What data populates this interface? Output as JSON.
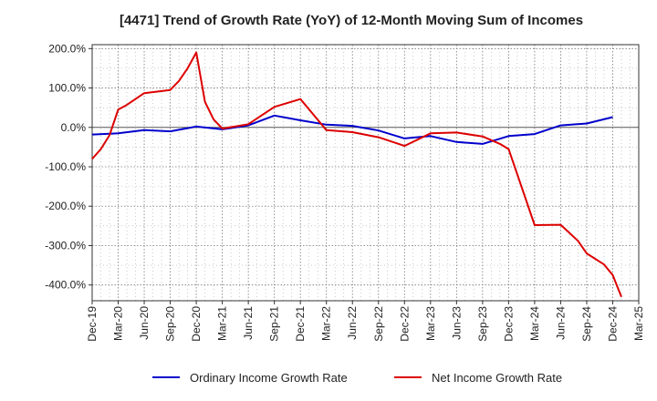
{
  "chart_data": {
    "type": "line",
    "title": "[4471]  Trend of Growth Rate (YoY) of 12-Month Moving Sum of Incomes",
    "xlabel": "",
    "ylabel": "",
    "ylim": [
      -440,
      210
    ],
    "y_ticks": [
      200,
      100,
      0,
      -100,
      -200,
      -300,
      -400
    ],
    "y_tick_labels": [
      "200.0%",
      "100.0%",
      "0.0%",
      "-100.0%",
      "-200.0%",
      "-300.0%",
      "-400.0%"
    ],
    "x_ticks": [
      "Dec-19",
      "Mar-20",
      "Jun-20",
      "Sep-20",
      "Dec-20",
      "Mar-21",
      "Jun-21",
      "Sep-21",
      "Dec-21",
      "Mar-22",
      "Jun-22",
      "Sep-22",
      "Dec-22",
      "Mar-23",
      "Jun-23",
      "Sep-23",
      "Dec-23",
      "Mar-24",
      "Jun-24",
      "Sep-24",
      "Dec-24",
      "Mar-25"
    ],
    "x_months_per_tick": 3,
    "grid": true,
    "legend_position": "bottom",
    "series": [
      {
        "name": "Ordinary Income Growth Rate",
        "color": "#0000cc",
        "points": [
          [
            "Dec-19",
            -18
          ],
          [
            "Mar-20",
            -15
          ],
          [
            "Jun-20",
            -7
          ],
          [
            "Sep-20",
            -10
          ],
          [
            "Dec-20",
            2
          ],
          [
            "Mar-21",
            -5
          ],
          [
            "Jun-21",
            5
          ],
          [
            "Sep-21",
            30
          ],
          [
            "Dec-21",
            18
          ],
          [
            "Mar-22",
            7
          ],
          [
            "Jun-22",
            4
          ],
          [
            "Sep-22",
            -8
          ],
          [
            "Dec-22",
            -28
          ],
          [
            "Mar-23",
            -22
          ],
          [
            "Jun-23",
            -37
          ],
          [
            "Sep-23",
            -42
          ],
          [
            "Dec-23",
            -22
          ],
          [
            "Mar-24",
            -17
          ],
          [
            "Jun-24",
            5
          ],
          [
            "Sep-24",
            10
          ],
          [
            "Dec-24",
            26
          ]
        ]
      },
      {
        "name": "Net Income Growth Rate",
        "color": "#dd0000",
        "points": [
          [
            "Dec-19",
            -80
          ],
          [
            "Jan-20",
            -55
          ],
          [
            "Feb-20",
            -20
          ],
          [
            "Mar-20",
            45
          ],
          [
            "Apr-20",
            57
          ],
          [
            "Jun-20",
            87
          ],
          [
            "Sep-20",
            95
          ],
          [
            "Oct-20",
            118
          ],
          [
            "Nov-20",
            150
          ],
          [
            "Dec-20",
            190
          ],
          [
            "Jan-21",
            65
          ],
          [
            "Feb-21",
            20
          ],
          [
            "Mar-21",
            -3
          ],
          [
            "Jun-21",
            8
          ],
          [
            "Sep-21",
            52
          ],
          [
            "Dec-21",
            72
          ],
          [
            "Mar-22",
            -7
          ],
          [
            "Jun-22",
            -12
          ],
          [
            "Sep-22",
            -25
          ],
          [
            "Dec-22",
            -47
          ],
          [
            "Mar-23",
            -15
          ],
          [
            "Jun-23",
            -13
          ],
          [
            "Sep-23",
            -23
          ],
          [
            "Nov-23",
            -42
          ],
          [
            "Dec-23",
            -55
          ],
          [
            "Mar-24",
            -248
          ],
          [
            "Jun-24",
            -247
          ],
          [
            "Aug-24",
            -288
          ],
          [
            "Sep-24",
            -320
          ],
          [
            "Nov-24",
            -348
          ],
          [
            "Dec-24",
            -375
          ],
          [
            "Jan-25",
            -430
          ]
        ]
      }
    ]
  }
}
